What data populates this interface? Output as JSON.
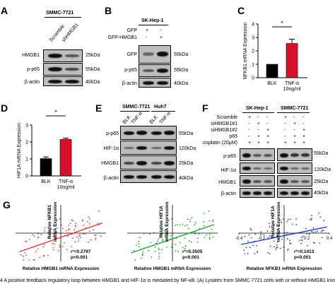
{
  "panels": {
    "A": {
      "label": "A",
      "cell_line": "SMMC-7721",
      "lanes": [
        "Scramble",
        "shHMGB1"
      ],
      "rows": [
        {
          "protein": "HMGB1",
          "kda": "25kDa"
        },
        {
          "protein": "p-p65",
          "kda": "55kDa"
        },
        {
          "protein": "β-actin",
          "kda": "40kDa"
        }
      ]
    },
    "B": {
      "label": "B",
      "cell_line": "SK-Hep-1",
      "conditions": [
        {
          "name": "GFP",
          "signs": [
            "+",
            "-"
          ]
        },
        {
          "name": "GFP-HMGB1",
          "signs": [
            "-",
            "+"
          ]
        }
      ],
      "rows": [
        {
          "protein": "GFP",
          "kda": "55kDa"
        },
        {
          "protein": "p-p65",
          "kda": "55kDa"
        },
        {
          "protein": "β-actin",
          "kda": "40kDa"
        }
      ]
    },
    "C": {
      "label": "C",
      "significance": "*"
    },
    "D": {
      "label": "D",
      "significance": "*"
    },
    "E": {
      "label": "E",
      "cell_lines": [
        "SMMC-7721",
        "Huh7"
      ],
      "lanes": [
        "BLK",
        "TNF-α",
        "BLK",
        "TNF-α"
      ],
      "rows": [
        {
          "protein": "p-p65",
          "kda": "55kDa"
        },
        {
          "protein": "HIF-1α",
          "kda": "120kDa"
        },
        {
          "protein": "HMGB1",
          "kda": "25kDa"
        },
        {
          "protein": "β-actin",
          "kda": "40kDa"
        }
      ]
    },
    "F": {
      "label": "F",
      "cell_lines": [
        "SK-Hep-1",
        "SMMC-7721"
      ],
      "conditions": [
        {
          "name": "Scramble",
          "signs": [
            "+",
            "-",
            "-",
            "+",
            "-",
            "-"
          ]
        },
        {
          "name": "siHMGB1#1",
          "signs": [
            "-",
            "+",
            "-",
            "-",
            "+",
            "-"
          ]
        },
        {
          "name": "siHMGB1#2",
          "signs": [
            "-",
            "-",
            "+",
            "-",
            "-",
            "+"
          ]
        },
        {
          "name": "p65",
          "signs": [
            "-",
            "+",
            "+",
            "-",
            "+",
            "+"
          ]
        },
        {
          "name": "cisplatin (20μM)",
          "signs": [
            "+",
            "+",
            "+",
            "+",
            "+",
            "+"
          ]
        }
      ],
      "rows": [
        {
          "protein": "p-p65",
          "kda": "55kDa"
        },
        {
          "protein": "HIF-1α",
          "kda": "120kDa"
        },
        {
          "protein": "HMGB1",
          "kda": "25kDa"
        },
        {
          "protein": "β-actin",
          "kda": "40kDa"
        }
      ]
    },
    "G": {
      "label": "G"
    }
  },
  "chart_data": [
    {
      "type": "bar",
      "panel": "C",
      "categories": [
        "BLK",
        "TNF-α\n10ng/ml"
      ],
      "values": [
        1.0,
        2.55
      ],
      "errors": [
        0.0,
        0.32
      ],
      "colors": [
        "#000000",
        "#d8102a"
      ],
      "ylabel": "NFKB1 mRNA Expression",
      "ylim": [
        0,
        4
      ],
      "yticks": [
        "0",
        "1",
        "2",
        "3",
        "4"
      ],
      "significance": "*"
    },
    {
      "type": "bar",
      "panel": "D",
      "categories": [
        "BLK",
        "TNF-α\n10ng/ml"
      ],
      "values": [
        1.02,
        2.15
      ],
      "errors": [
        0.1,
        0.08
      ],
      "colors": [
        "#000000",
        "#d8102a"
      ],
      "ylabel": "HIF1A mRNA Expression",
      "ylim": [
        0,
        3
      ],
      "yticks": [
        "0",
        "1",
        "2",
        "3"
      ],
      "significance": "*"
    },
    {
      "type": "scatter",
      "panel": "G1",
      "color": "#e03a3a",
      "xlabel": "Relative HMGB1 mRNA Expression",
      "ylabel": "Relative NFKB1\nmRNA Expression",
      "xlim": [
        -0.6,
        0.6
      ],
      "ylim": [
        -0.5,
        0.5
      ],
      "stats": [
        "r²=0.2797",
        "p<0.001"
      ],
      "fit": {
        "x": [
          -0.55,
          0.55
        ],
        "y": [
          -0.33,
          0.18
        ]
      }
    },
    {
      "type": "scatter",
      "panel": "G2",
      "color": "#23a33a",
      "xlabel": "Relative HMGB1 mRNA Expression",
      "ylabel": "Relative HIF1A\nmRNA Expression",
      "xlim": [
        -0.6,
        0.6
      ],
      "ylim": [
        -0.5,
        0.5
      ],
      "stats": [
        "r²=0.3505",
        "p<0.001"
      ],
      "fit": {
        "x": [
          -0.55,
          0.55
        ],
        "y": [
          -0.35,
          0.15
        ]
      }
    },
    {
      "type": "scatter",
      "panel": "G3",
      "color": "#2b3fa8",
      "xlabel": "Relative NFKB1 mRNA Expression",
      "ylabel": "Relative HIF1A\nmRNA Expression",
      "xlim": [
        -0.4,
        0.4
      ],
      "ylim": [
        -0.5,
        0.5
      ],
      "xticks": [
        "-0.4",
        "-0.2",
        "0.2",
        "0.4"
      ],
      "stats": [
        "r²=0.1413",
        "p<0.001"
      ],
      "fit": {
        "x": [
          -0.38,
          0.38
        ],
        "y": [
          -0.2,
          0.11
        ]
      }
    }
  ],
  "caption": "4  A positive feedback regulatory loop between HMGB1 and HIF-1α is mediated by NF-κB. (A) Lysates from SMMC-7721 cells with or without HMGB1 knockdown"
}
